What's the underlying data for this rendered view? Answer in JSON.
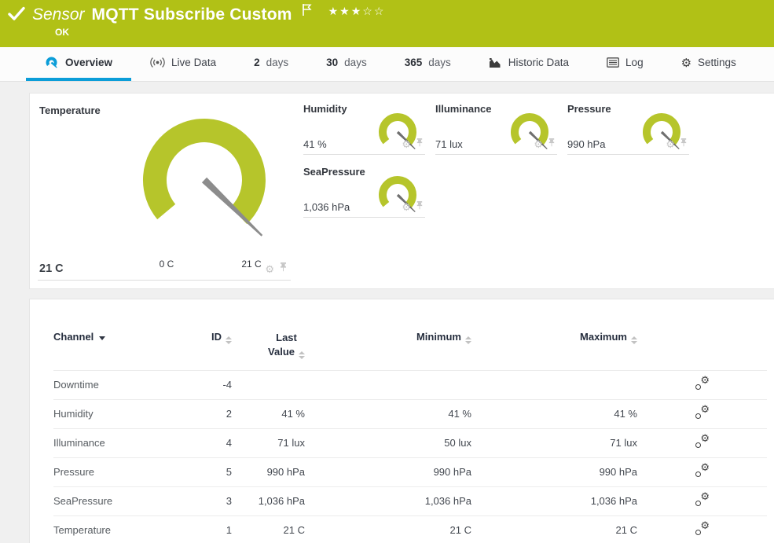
{
  "colors": {
    "header_green": "#b1c116",
    "gauge_green": "#b6c52b",
    "active_blue": "#0b9dd8"
  },
  "header": {
    "kind": "Sensor",
    "title": "MQTT Subscribe Custom",
    "status": "OK",
    "stars": "★★★☆☆"
  },
  "tabs": [
    {
      "label": "Overview",
      "icon": "gauge-icon"
    },
    {
      "label": "Live Data",
      "icon": "live-icon"
    },
    {
      "num": "2",
      "unit": "days"
    },
    {
      "num": "30",
      "unit": "days"
    },
    {
      "num": "365",
      "unit": "days"
    },
    {
      "label": "Historic Data",
      "icon": "area-chart-icon"
    },
    {
      "label": "Log",
      "icon": "log-icon"
    },
    {
      "label": "Settings",
      "icon": "gear-icon"
    }
  ],
  "gauges": {
    "primary": {
      "name": "Temperature",
      "value": "21 C",
      "scale_min": "0 C",
      "scale_max": "21 C"
    },
    "small": [
      {
        "name": "Humidity",
        "value": "41 %"
      },
      {
        "name": "Illuminance",
        "value": "71 lux"
      },
      {
        "name": "Pressure",
        "value": "990 hPa"
      },
      {
        "name": "SeaPressure",
        "value": "1,036 hPa"
      }
    ]
  },
  "table": {
    "headers": {
      "channel": "Channel",
      "id": "ID",
      "last1": "Last",
      "last2": "Value",
      "min": "Minimum",
      "max": "Maximum"
    },
    "rows": [
      {
        "channel": "Downtime",
        "id": "-4",
        "last": "",
        "min": "",
        "max": ""
      },
      {
        "channel": "Humidity",
        "id": "2",
        "last": "41 %",
        "min": "41 %",
        "max": "41 %"
      },
      {
        "channel": "Illuminance",
        "id": "4",
        "last": "71 lux",
        "min": "50 lux",
        "max": "71 lux"
      },
      {
        "channel": "Pressure",
        "id": "5",
        "last": "990 hPa",
        "min": "990 hPa",
        "max": "990 hPa"
      },
      {
        "channel": "SeaPressure",
        "id": "3",
        "last": "1,036 hPa",
        "min": "1,036 hPa",
        "max": "1,036 hPa"
      },
      {
        "channel": "Temperature",
        "id": "1",
        "last": "21 C",
        "min": "21 C",
        "max": "21 C"
      }
    ]
  },
  "icons": {
    "gear_glyph": "⚙"
  }
}
